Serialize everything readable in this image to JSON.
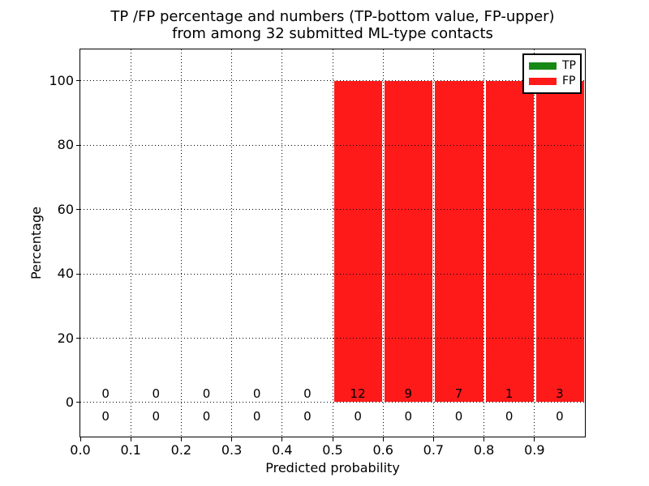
{
  "chart_data": {
    "type": "bar",
    "title_line1": "TP /FP percentage and numbers (TP-bottom value, FP-upper)",
    "title_line2": "from among 32 submitted ML-type contacts",
    "xlabel": "Predicted probability",
    "ylabel": "Percentage",
    "xlim": [
      0.0,
      1.0
    ],
    "ylim": [
      -10.6,
      109.8
    ],
    "grid": true,
    "x_ticks": [
      {
        "value": 0.0,
        "label": "0.0"
      },
      {
        "value": 0.1,
        "label": "0.1"
      },
      {
        "value": 0.2,
        "label": "0.2"
      },
      {
        "value": 0.3,
        "label": "0.3"
      },
      {
        "value": 0.4,
        "label": "0.4"
      },
      {
        "value": 0.5,
        "label": "0.5"
      },
      {
        "value": 0.6,
        "label": "0.6"
      },
      {
        "value": 0.7,
        "label": "0.7"
      },
      {
        "value": 0.8,
        "label": "0.8"
      },
      {
        "value": 0.9,
        "label": "0.9"
      }
    ],
    "y_ticks": [
      {
        "value": 0,
        "label": "0"
      },
      {
        "value": 20,
        "label": "20"
      },
      {
        "value": 40,
        "label": "40"
      },
      {
        "value": 60,
        "label": "60"
      },
      {
        "value": 80,
        "label": "80"
      },
      {
        "value": 100,
        "label": "100"
      }
    ],
    "bin_edges": [
      0.0,
      0.1,
      0.2,
      0.3,
      0.4,
      0.5,
      0.6,
      0.7,
      0.8,
      0.9,
      1.0
    ],
    "bin_centers": [
      0.05,
      0.15,
      0.25,
      0.35,
      0.45,
      0.55,
      0.65,
      0.75,
      0.85,
      0.95
    ],
    "series": [
      {
        "name": "TP",
        "color": "#168816",
        "percent": [
          0,
          0,
          0,
          0,
          0,
          0,
          0,
          0,
          0,
          0
        ],
        "counts": [
          0,
          0,
          0,
          0,
          0,
          0,
          0,
          0,
          0,
          0
        ]
      },
      {
        "name": "FP",
        "color": "#ff1a1a",
        "percent": [
          0,
          0,
          0,
          0,
          0,
          100,
          100,
          100,
          100,
          100
        ],
        "counts": [
          0,
          0,
          0,
          0,
          0,
          12,
          9,
          7,
          1,
          3
        ]
      }
    ],
    "annotations": {
      "fp_count_row": [
        "0",
        "0",
        "0",
        "0",
        "0",
        "12",
        "9",
        "7",
        "1",
        "3"
      ],
      "tp_count_row": [
        "0",
        "0",
        "0",
        "0",
        "0",
        "0",
        "0",
        "0",
        "0",
        "0"
      ]
    },
    "legend": {
      "position": "upper right",
      "entries": [
        {
          "label": "TP",
          "color": "#168816"
        },
        {
          "label": "FP",
          "color": "#ff1a1a"
        }
      ]
    }
  }
}
